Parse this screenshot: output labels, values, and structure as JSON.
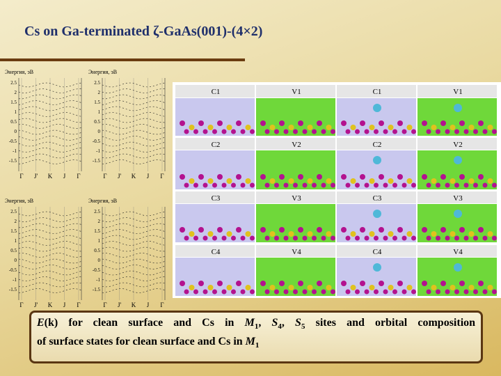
{
  "title": "Cs on Ga-terminated ζ-GaAs(001)-(4×2)",
  "band_plots": [
    {
      "ylabel": "Энергия, эВ",
      "yticks": [
        "2.5",
        "2",
        "1.5",
        "1",
        "0.5",
        "0",
        "-0.5",
        "-1",
        "-1.5"
      ],
      "klabels": [
        "Γ",
        "J'",
        "K",
        "J",
        "Γ"
      ]
    },
    {
      "ylabel": "Энергия, эВ",
      "yticks": [
        "2.5",
        "2",
        "1.5",
        "1",
        "0.5",
        "0",
        "-0.5",
        "-1",
        "-1.5"
      ],
      "klabels": [
        "Γ",
        "J'",
        "K",
        "J",
        "Γ"
      ]
    },
    {
      "ylabel": "Энергия, эВ",
      "yticks": [
        "2.5",
        "2",
        "1.5",
        "1",
        "0.5",
        "0",
        "-0.5",
        "-1",
        "-1.5"
      ],
      "klabels": [
        "Γ",
        "J'",
        "K",
        "J",
        "Γ"
      ]
    },
    {
      "ylabel": "Энергия, эВ",
      "yticks": [
        "2.5",
        "2",
        "1.5",
        "1",
        "0.5",
        "0",
        "-0.5",
        "-1",
        "-1.5"
      ],
      "klabels": [
        "Γ",
        "J'",
        "K",
        "J",
        "Γ"
      ]
    }
  ],
  "orbital_grid": {
    "rows": [
      [
        "C1",
        "V1",
        "C1",
        "V1"
      ],
      [
        "C2",
        "V2",
        "C2",
        "V2"
      ],
      [
        "C3",
        "V3",
        "C3",
        "V3"
      ],
      [
        "C4",
        "V4",
        "C4",
        "V4"
      ]
    ]
  },
  "caption": [
    "E",
    "(k) for clean surface and Cs in ",
    "M",
    "1",
    ", ",
    "S",
    "4",
    ", ",
    "S",
    "5",
    " sites and orbital composition",
    "of surface states for clean surface and Cs in ",
    "M",
    "1"
  ]
}
